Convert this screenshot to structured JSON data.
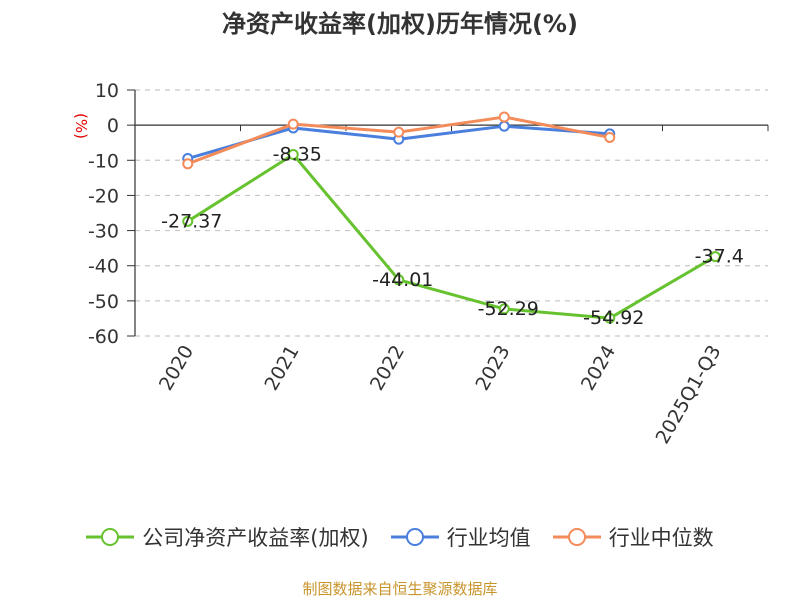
{
  "chart_data": {
    "type": "line",
    "title": "净资产收益率(加权)历年情况(%)",
    "ylabel": "(%)",
    "categories": [
      "2020",
      "2021",
      "2022",
      "2023",
      "2024",
      "2025Q1-Q3"
    ],
    "ylim": [
      -60,
      10
    ],
    "yticks": [
      10,
      0,
      -10,
      -20,
      -30,
      -40,
      -50,
      -60
    ],
    "grid": true,
    "legend_position": "bottom",
    "series": [
      {
        "name": "公司净资产收益率(加权)",
        "color": "#66c22e",
        "values": [
          -27.37,
          -8.35,
          -44.01,
          -52.29,
          -54.92,
          -37.4
        ],
        "labels": [
          "-27.37",
          "-8.35",
          "-44.01",
          "-52.29",
          "-54.92",
          "-37.4"
        ]
      },
      {
        "name": "行业均值",
        "color": "#4a7fde",
        "values": [
          -9.5,
          -0.8,
          -4.0,
          -0.3,
          -2.5,
          null
        ]
      },
      {
        "name": "行业中位数",
        "color": "#f38b5a",
        "values": [
          -11.0,
          0.3,
          -2.0,
          2.3,
          -3.5,
          null
        ]
      }
    ]
  },
  "source": "制图数据来自恒生聚源数据库"
}
